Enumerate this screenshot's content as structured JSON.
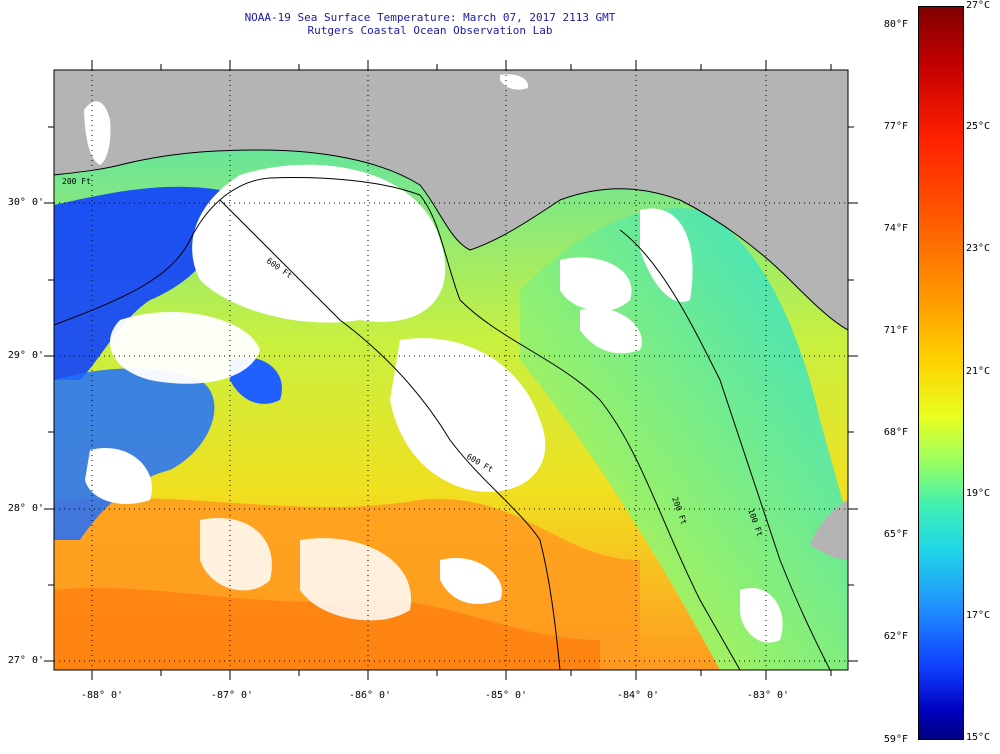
{
  "title": {
    "line1": "NOAA-19 Sea Surface Temperature:  March 07, 2017 2113 GMT",
    "line2": "Rutgers Coastal Ocean Observation Lab"
  },
  "map": {
    "latitude_labels": [
      "30° 0'",
      "29° 0'",
      "28° 0'",
      "27° 0'"
    ],
    "longitude_labels": [
      "-88° 0'",
      "-87° 0'",
      "-86° 0'",
      "-85° 0'",
      "-84° 0'",
      "-83° 0'"
    ],
    "isobath_labels": [
      "200 Ft",
      "600 Ft",
      "600 Ft",
      "200 Ft",
      "100 Ft"
    ],
    "colors": {
      "land": "#b4b4b4",
      "cloud": "#ffffff",
      "cold": "#1040ff",
      "warm": "#ff9a20"
    }
  },
  "colorbar": {
    "fahrenheit_labels": [
      "80°F",
      "77°F",
      "74°F",
      "71°F",
      "68°F",
      "65°F",
      "62°F",
      "59°F"
    ],
    "celsius_labels": [
      "27°C",
      "25°C",
      "23°C",
      "21°C",
      "19°C",
      "17°C",
      "15°C"
    ]
  }
}
